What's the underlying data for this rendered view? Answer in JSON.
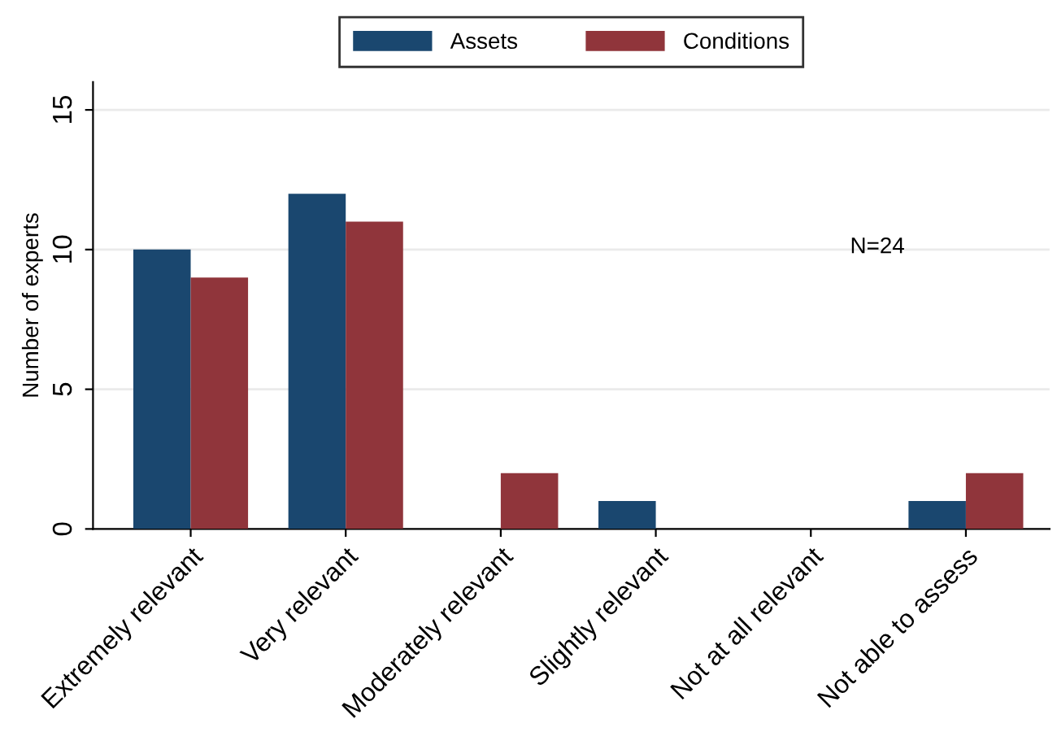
{
  "chart_data": {
    "type": "bar",
    "ylabel": "Number of experts",
    "categories": [
      "Extremely relevant",
      "Very relevant",
      "Moderately relevant",
      "Slightly relevant",
      "Not at all relevant",
      "Not able to assess"
    ],
    "series": [
      {
        "name": "Assets",
        "color": "#1a476f",
        "values": [
          10,
          12,
          0,
          1,
          0,
          1
        ]
      },
      {
        "name": "Conditions",
        "color": "#90353b",
        "values": [
          9,
          11,
          2,
          0,
          0,
          2
        ]
      }
    ],
    "ylim": [
      0,
      16
    ],
    "yticks": [
      0,
      5,
      10,
      15
    ],
    "grid": "y",
    "legend": "top",
    "annotations": [
      "N=24"
    ]
  }
}
